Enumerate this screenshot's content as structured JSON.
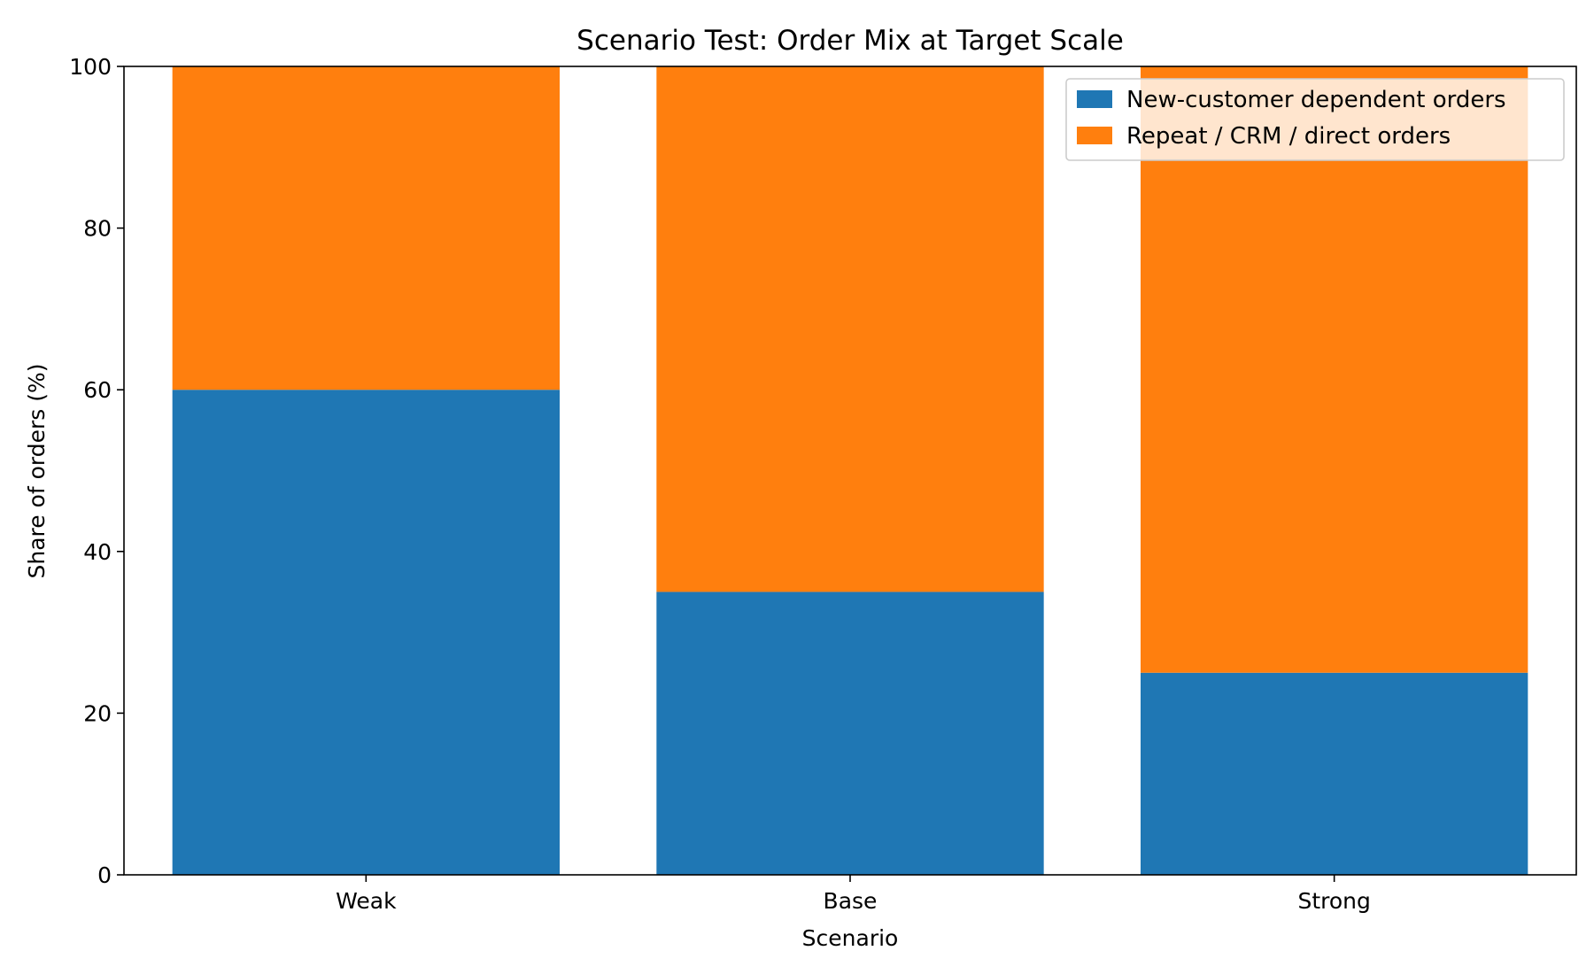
{
  "chart_data": {
    "type": "bar",
    "stacked": true,
    "title": "Scenario Test: Order Mix at Target Scale",
    "xlabel": "Scenario",
    "ylabel": "Share of orders (%)",
    "ylim": [
      0,
      100
    ],
    "yticks": [
      0,
      20,
      40,
      60,
      80,
      100
    ],
    "grid": false,
    "legend_position": "top-right",
    "categories": [
      "Weak",
      "Base",
      "Strong"
    ],
    "series": [
      {
        "name": "New-customer dependent orders",
        "values": [
          60,
          35,
          25
        ],
        "color": "#1f77b4"
      },
      {
        "name": "Repeat / CRM / direct orders",
        "values": [
          40,
          65,
          75
        ],
        "color": "#ff7f0e"
      }
    ]
  }
}
